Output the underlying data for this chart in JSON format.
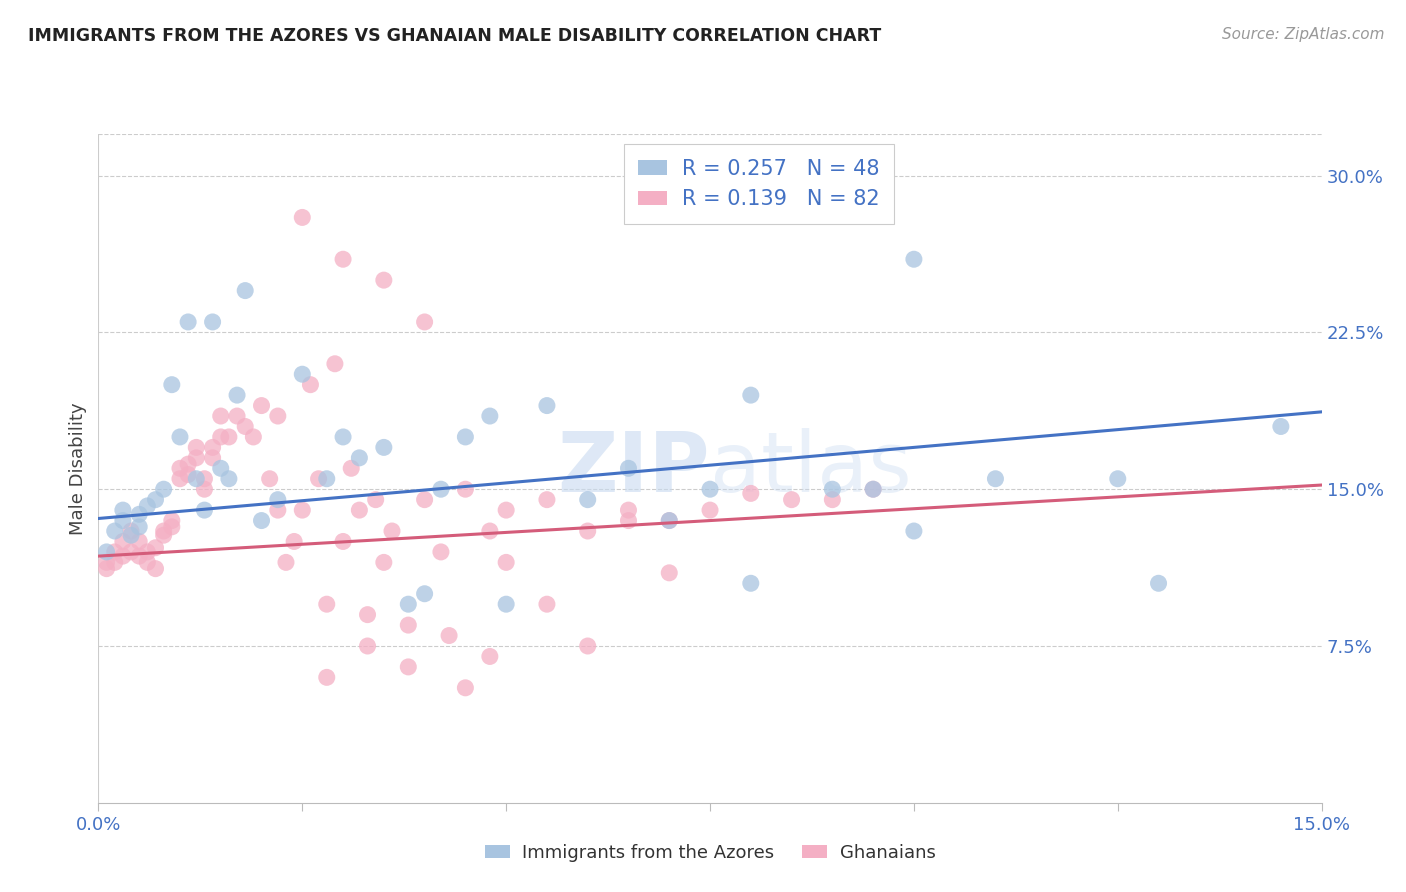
{
  "title": "IMMIGRANTS FROM THE AZORES VS GHANAIAN MALE DISABILITY CORRELATION CHART",
  "source": "Source: ZipAtlas.com",
  "ylabel": "Male Disability",
  "yticks": [
    "7.5%",
    "15.0%",
    "22.5%",
    "30.0%"
  ],
  "ytick_vals": [
    0.075,
    0.15,
    0.225,
    0.3
  ],
  "xlim": [
    0.0,
    0.15
  ],
  "ylim": [
    0.0,
    0.32
  ],
  "legend_label1": "Immigrants from the Azores",
  "legend_label2": "Ghanaians",
  "color_blue": "#a8c4e0",
  "color_pink": "#f4afc4",
  "line_color_blue": "#4472c4",
  "line_color_pink": "#d45c7a",
  "watermark": "ZIPatlas",
  "blue_R": 0.257,
  "blue_N": 48,
  "pink_R": 0.139,
  "pink_N": 82,
  "blue_line_x": [
    0.0,
    0.15
  ],
  "blue_line_y": [
    0.136,
    0.187
  ],
  "pink_line_x": [
    0.0,
    0.15
  ],
  "pink_line_y": [
    0.118,
    0.152
  ],
  "blue_x": [
    0.001,
    0.002,
    0.003,
    0.003,
    0.004,
    0.005,
    0.005,
    0.006,
    0.007,
    0.008,
    0.009,
    0.01,
    0.011,
    0.012,
    0.013,
    0.014,
    0.015,
    0.016,
    0.017,
    0.018,
    0.02,
    0.022,
    0.025,
    0.028,
    0.03,
    0.032,
    0.035,
    0.038,
    0.04,
    0.042,
    0.045,
    0.048,
    0.05,
    0.055,
    0.06,
    0.065,
    0.07,
    0.075,
    0.08,
    0.09,
    0.095,
    0.1,
    0.11,
    0.125,
    0.13,
    0.145,
    0.1,
    0.08
  ],
  "blue_y": [
    0.12,
    0.13,
    0.135,
    0.14,
    0.128,
    0.138,
    0.132,
    0.142,
    0.145,
    0.15,
    0.2,
    0.175,
    0.23,
    0.155,
    0.14,
    0.23,
    0.16,
    0.155,
    0.195,
    0.245,
    0.135,
    0.145,
    0.205,
    0.155,
    0.175,
    0.165,
    0.17,
    0.095,
    0.1,
    0.15,
    0.175,
    0.185,
    0.095,
    0.19,
    0.145,
    0.16,
    0.135,
    0.15,
    0.105,
    0.15,
    0.15,
    0.13,
    0.155,
    0.155,
    0.105,
    0.18,
    0.26,
    0.195
  ],
  "pink_x": [
    0.001,
    0.001,
    0.002,
    0.002,
    0.003,
    0.003,
    0.004,
    0.004,
    0.005,
    0.005,
    0.006,
    0.006,
    0.007,
    0.007,
    0.008,
    0.008,
    0.009,
    0.009,
    0.01,
    0.01,
    0.011,
    0.011,
    0.012,
    0.012,
    0.013,
    0.013,
    0.014,
    0.014,
    0.015,
    0.015,
    0.016,
    0.017,
    0.018,
    0.019,
    0.02,
    0.021,
    0.022,
    0.023,
    0.024,
    0.025,
    0.026,
    0.027,
    0.028,
    0.029,
    0.03,
    0.031,
    0.032,
    0.033,
    0.034,
    0.035,
    0.036,
    0.038,
    0.04,
    0.042,
    0.045,
    0.048,
    0.05,
    0.055,
    0.06,
    0.065,
    0.07,
    0.075,
    0.08,
    0.085,
    0.09,
    0.095,
    0.025,
    0.03,
    0.035,
    0.04,
    0.045,
    0.05,
    0.055,
    0.06,
    0.065,
    0.07,
    0.022,
    0.028,
    0.033,
    0.038,
    0.043,
    0.048
  ],
  "pink_y": [
    0.115,
    0.112,
    0.12,
    0.115,
    0.118,
    0.125,
    0.12,
    0.13,
    0.125,
    0.118,
    0.12,
    0.115,
    0.112,
    0.122,
    0.13,
    0.128,
    0.132,
    0.135,
    0.16,
    0.155,
    0.162,
    0.157,
    0.165,
    0.17,
    0.15,
    0.155,
    0.17,
    0.165,
    0.175,
    0.185,
    0.175,
    0.185,
    0.18,
    0.175,
    0.19,
    0.155,
    0.185,
    0.115,
    0.125,
    0.14,
    0.2,
    0.155,
    0.095,
    0.21,
    0.125,
    0.16,
    0.14,
    0.09,
    0.145,
    0.115,
    0.13,
    0.085,
    0.145,
    0.12,
    0.055,
    0.13,
    0.115,
    0.095,
    0.075,
    0.135,
    0.11,
    0.14,
    0.148,
    0.145,
    0.145,
    0.15,
    0.28,
    0.26,
    0.25,
    0.23,
    0.15,
    0.14,
    0.145,
    0.13,
    0.14,
    0.135,
    0.14,
    0.06,
    0.075,
    0.065,
    0.08,
    0.07
  ]
}
